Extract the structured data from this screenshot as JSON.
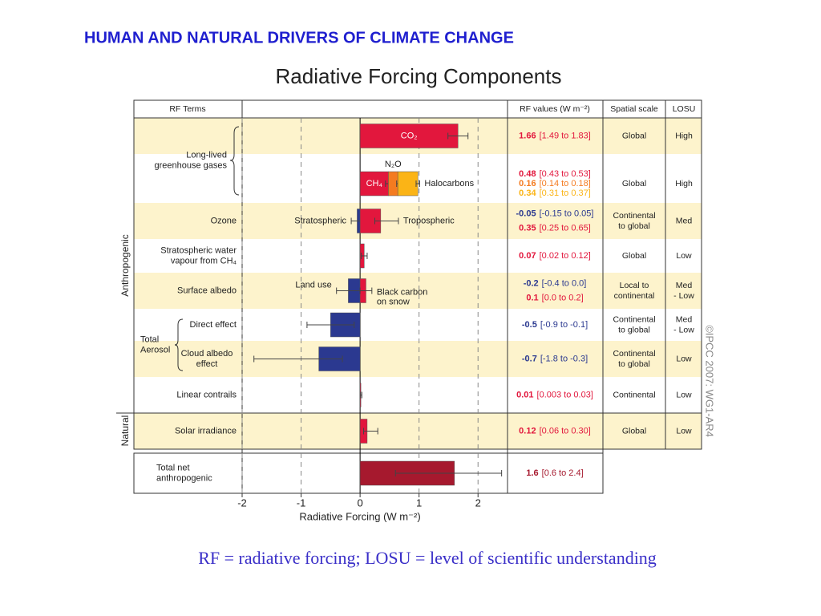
{
  "title": "HUMAN AND NATURAL DRIVERS OF CLIMATE CHANGE",
  "caption": "RF = radiative forcing; LOSU = level of scientific understanding",
  "chart_data": {
    "type": "hbar",
    "title": "Radiative Forcing Components",
    "xlabel": "Radiative Forcing  (W m⁻²)",
    "xlim": [
      -2,
      2.5
    ],
    "xticks": [
      -2,
      -1,
      0,
      1,
      2
    ],
    "grid": true,
    "headers": [
      "RF Terms",
      "RF values (W m⁻²)",
      "Spatial scale",
      "LOSU"
    ],
    "groups": [
      "Anthropogenic",
      "Natural"
    ],
    "aerosol_label": [
      "Total",
      "Aerosol"
    ],
    "credit": "©IPCC  2007: WG1-AR4",
    "rows": [
      {
        "term": [
          "Long-lived",
          "greenhouse gases"
        ],
        "bars": [
          {
            "name": [
              "CO₂"
            ],
            "value": 1.66,
            "low": 1.49,
            "high": 1.83,
            "range_label": "[1.49 to 1.83]",
            "color": "#e2173d"
          }
        ],
        "scale": [
          "Global"
        ],
        "losu": [
          "High"
        ]
      },
      {
        "stacked": true,
        "bars": [
          {
            "name": [
              "CH₄"
            ],
            "value": 0.48,
            "low": 0.43,
            "high": 0.53,
            "range_label": "[0.43 to 0.53]",
            "color": "#e2173d"
          },
          {
            "name": [
              "N₂O"
            ],
            "value": 0.16,
            "low": 0.14,
            "high": 0.18,
            "range_label": "[0.14 to 0.18]",
            "color": "#f47b20"
          },
          {
            "name": [
              "Halocarbons"
            ],
            "value": 0.34,
            "low": 0.31,
            "high": 0.37,
            "range_label": "[0.31 to 0.37]",
            "color": "#fbb416"
          }
        ],
        "scale": [
          "Global"
        ],
        "losu": [
          "High"
        ]
      },
      {
        "term": [
          "Ozone"
        ],
        "bars": [
          {
            "name": [
              "Stratospheric"
            ],
            "value": -0.05,
            "low": -0.15,
            "high": 0.05,
            "range_label": "[-0.15 to 0.05]",
            "color": "#2b3990"
          },
          {
            "name": [
              "Tropospheric"
            ],
            "value": 0.35,
            "low": 0.25,
            "high": 0.65,
            "range_label": "[0.25 to 0.65]",
            "color": "#e2173d"
          }
        ],
        "scale": [
          "Continental",
          "to global"
        ],
        "losu": [
          "Med"
        ]
      },
      {
        "term": [
          "Stratospheric water",
          "vapour from CH₄"
        ],
        "bars": [
          {
            "value": 0.07,
            "low": 0.02,
            "high": 0.12,
            "range_label": "[0.02 to 0.12]",
            "color": "#e2173d"
          }
        ],
        "scale": [
          "Global"
        ],
        "losu": [
          "Low"
        ]
      },
      {
        "term": [
          "Surface albedo"
        ],
        "bars": [
          {
            "name": [
              "Land use"
            ],
            "value": -0.2,
            "low": -0.4,
            "high": 0.0,
            "range_label": "[-0.4 to 0.0]",
            "color": "#2b3990"
          },
          {
            "name": [
              "Black carbon",
              "on snow"
            ],
            "value": 0.1,
            "low": 0.0,
            "high": 0.2,
            "range_label": "[0.0 to 0.2]",
            "color": "#e2173d"
          }
        ],
        "scale": [
          "Local to",
          "continental"
        ],
        "losu": [
          "Med",
          "- Low"
        ]
      },
      {
        "term": [
          "Direct effect"
        ],
        "bars": [
          {
            "value": -0.5,
            "low": -0.9,
            "high": -0.1,
            "range_label": "[-0.9 to -0.1]",
            "color": "#2b3990"
          }
        ],
        "scale": [
          "Continental",
          "to global"
        ],
        "losu": [
          "Med",
          "- Low"
        ]
      },
      {
        "term": [
          "Cloud albedo",
          "effect"
        ],
        "bars": [
          {
            "value": -0.7,
            "low": -1.8,
            "high": -0.3,
            "range_label": "[-1.8 to -0.3]",
            "color": "#2b3990"
          }
        ],
        "scale": [
          "Continental",
          "to global"
        ],
        "losu": [
          "Low"
        ]
      },
      {
        "term": [
          "Linear contrails"
        ],
        "bars": [
          {
            "value": 0.01,
            "low": 0.003,
            "high": 0.03,
            "range_label": "[0.003 to 0.03]",
            "color": "#e2173d"
          }
        ],
        "scale": [
          "Continental"
        ],
        "losu": [
          "Low"
        ]
      },
      {
        "term": [
          "Solar irradiance"
        ],
        "bars": [
          {
            "value": 0.12,
            "low": 0.06,
            "high": 0.3,
            "range_label": "[0.06 to 0.30]",
            "color": "#e2173d"
          }
        ],
        "scale": [
          "Global"
        ],
        "losu": [
          "Low"
        ]
      },
      {
        "term": [
          "Total net",
          "anthropogenic"
        ],
        "bars": [
          {
            "value": 1.6,
            "low": 0.6,
            "high": 2.4,
            "range_label": "[0.6 to 2.4]",
            "color": "#a6192e"
          }
        ]
      }
    ]
  }
}
